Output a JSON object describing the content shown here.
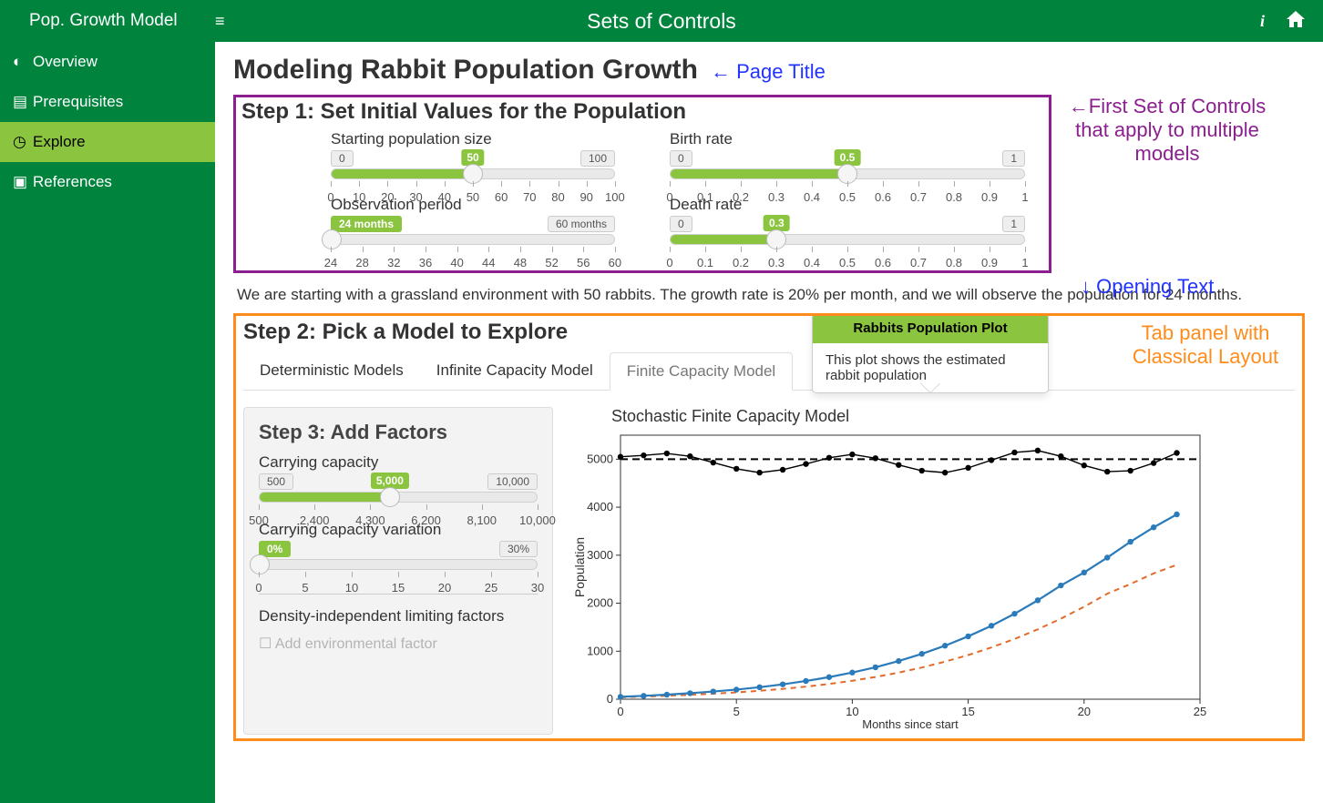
{
  "topbar": {
    "brand": "Pop. Growth Model",
    "title": "Sets of Controls"
  },
  "sidebar": {
    "items": [
      {
        "label": "Overview"
      },
      {
        "label": "Prerequisites"
      },
      {
        "label": "Explore"
      },
      {
        "label": "References"
      }
    ]
  },
  "page_title": "Modeling Rabbit Population Growth",
  "ann": {
    "page_title": "← Page Title",
    "first_set": "←First Set of Controls that apply to multiple models",
    "opening": "↓ Opening Text",
    "tab_panel": "Tab panel with Classical Layout"
  },
  "step1": {
    "heading": "Step 1: Set Initial Values for the Population",
    "sliders": {
      "pop_size": {
        "label": "Starting population size",
        "min": "0",
        "max": "100",
        "value": "50",
        "pct": 50,
        "ticks": [
          "0",
          "10",
          "20",
          "30",
          "40",
          "50",
          "60",
          "70",
          "80",
          "90",
          "100"
        ]
      },
      "obs_period": {
        "label": "Observation period",
        "min_label": "24 months",
        "max_label": "60 months",
        "value": "24 months",
        "pct": 0,
        "ticks": [
          "24",
          "28",
          "32",
          "36",
          "40",
          "44",
          "48",
          "52",
          "56",
          "60"
        ]
      },
      "birth": {
        "label": "Birth rate",
        "min": "0",
        "max": "1",
        "value": "0.5",
        "pct": 50,
        "ticks": [
          "0",
          "0.1",
          "0.2",
          "0.3",
          "0.4",
          "0.5",
          "0.6",
          "0.7",
          "0.8",
          "0.9",
          "1"
        ]
      },
      "death": {
        "label": "Death rate",
        "min": "0",
        "max": "1",
        "value": "0.3",
        "pct": 30,
        "ticks": [
          "0",
          "0.1",
          "0.2",
          "0.3",
          "0.4",
          "0.5",
          "0.6",
          "0.7",
          "0.8",
          "0.9",
          "1"
        ]
      }
    }
  },
  "opening_text": "We are starting with a grassland environment with 50 rabbits. The growth rate is 20% per month, and we will observe the population for 24 months.",
  "step2": {
    "heading": "Step 2: Pick a Model to Explore",
    "tabs": [
      "Deterministic Models",
      "Infinite Capacity Model",
      "Finite Capacity Model"
    ],
    "active_tab": 2
  },
  "popover": {
    "title": "Rabbits Population Plot",
    "body": "This plot shows the estimated rabbit population"
  },
  "step3": {
    "heading": "Step 3: Add Factors",
    "carrying": {
      "label": "Carrying capacity",
      "min": "500",
      "max": "10,000",
      "value": "5,000",
      "pct": 47,
      "ticks": [
        "500",
        "2,400",
        "4,300",
        "6,200",
        "8,100",
        "10,000"
      ]
    },
    "variation": {
      "label": "Carrying capacity variation",
      "min": "0%",
      "max": "30%",
      "value": "0%",
      "pct": 0,
      "ticks": [
        "0",
        "5",
        "10",
        "15",
        "20",
        "25",
        "30"
      ]
    },
    "subheading": "Density-independent limiting factors",
    "checkbox1": "Add environmental factor"
  },
  "chart": {
    "title": "Stochastic Finite Capacity Model",
    "xlabel": "Months since start",
    "ylabel": "Population",
    "xlim": [
      0,
      25
    ],
    "ylim": [
      0,
      5500
    ],
    "xticks": [
      0,
      5,
      10,
      15,
      20,
      25
    ],
    "yticks": [
      0,
      1000,
      2000,
      3000,
      4000,
      5000
    ],
    "capacity_mean": 5000,
    "colors": {
      "blue": "#2b7bba",
      "orange": "#e26b2a",
      "black": "#000000",
      "grid": "#dddddd",
      "axis": "#333333"
    },
    "series_blue": [
      50,
      70,
      95,
      125,
      160,
      200,
      250,
      310,
      380,
      460,
      555,
      665,
      795,
      945,
      1115,
      1310,
      1530,
      1780,
      2060,
      2370,
      2640,
      2950,
      3280,
      3580,
      3850
    ],
    "series_orange": [
      40,
      55,
      72,
      92,
      115,
      142,
      175,
      215,
      262,
      318,
      385,
      463,
      555,
      660,
      782,
      920,
      1078,
      1255,
      1455,
      1678,
      1925,
      2198,
      2400,
      2620,
      2800
    ],
    "series_black": [
      5050,
      5080,
      5120,
      5060,
      4930,
      4800,
      4720,
      4780,
      4900,
      5030,
      5100,
      5020,
      4880,
      4760,
      4720,
      4820,
      4980,
      5140,
      5180,
      5060,
      4870,
      4740,
      4760,
      4920,
      5130
    ]
  }
}
